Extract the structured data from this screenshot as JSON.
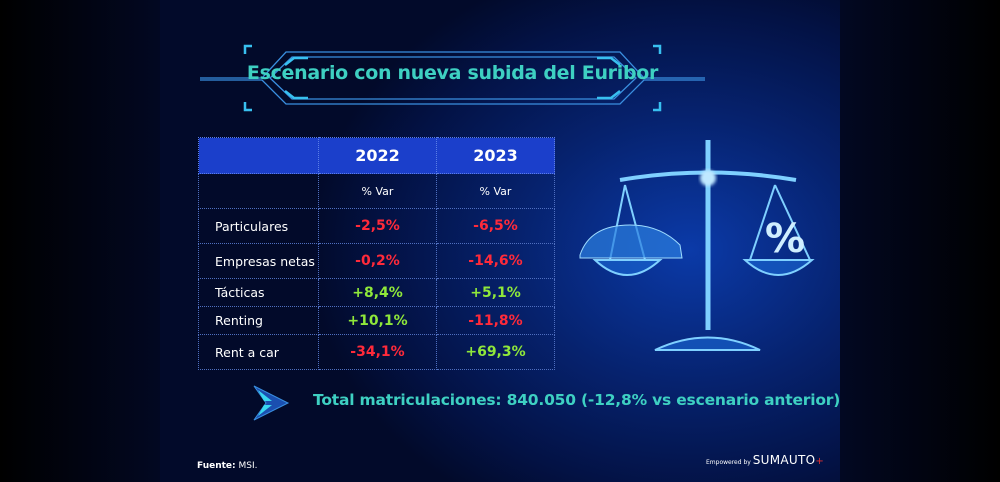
{
  "title": "Escenario con nueva subida del Euribor",
  "table": {
    "headers": [
      "",
      "2022",
      "2023"
    ],
    "subheaders": [
      "",
      "% Var",
      "% Var"
    ],
    "rows": [
      {
        "label": "Particulares",
        "v2022": "-2,5%",
        "v2023": "-6,5%"
      },
      {
        "label": "Empresas netas",
        "v2022": "-0,2%",
        "v2023": "-14,6%"
      },
      {
        "label": "Tácticas",
        "v2022": "+8,4%",
        "v2023": "+5,1%"
      },
      {
        "label": "Renting",
        "v2022": "+10,1%",
        "v2023": "-11,8%"
      },
      {
        "label": "Rent a car",
        "v2022": "-34,1%",
        "v2023": "+69,3%"
      }
    ]
  },
  "total": "Total matriculaciones: 840.050 (-12,8% vs escenario anterior)",
  "source": {
    "label": "Fuente:",
    "value": "MSI."
  },
  "brand": {
    "prefix": "Empowered by",
    "name": "SUMAUTO",
    "mark": "+"
  },
  "colors": {
    "accent": "#3ed0c2",
    "negative": "#ff2a3a",
    "positive": "#8fe83a",
    "header": "#1b3fcb"
  },
  "icons": [
    "arrow-chevron-icon",
    "balance-scale-illustration",
    "car-icon",
    "percent-icon"
  ]
}
